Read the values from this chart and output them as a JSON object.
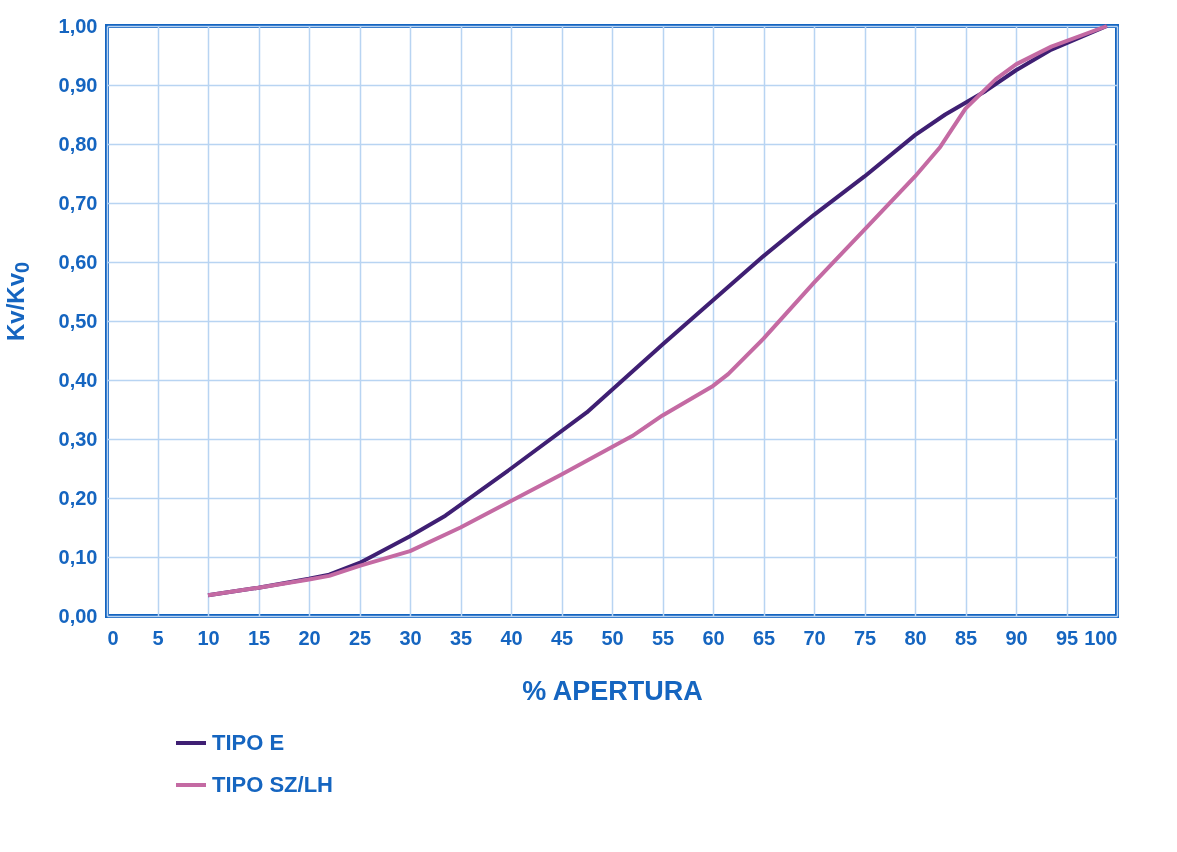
{
  "chart_data": {
    "type": "line",
    "xlabel": "%  APERTURA",
    "ylabel": "Kv/Kv$_{0}$",
    "xlim": [
      0,
      100
    ],
    "xticks": [
      0,
      5,
      10,
      15,
      20,
      25,
      30,
      35,
      40,
      45,
      50,
      55,
      60,
      65,
      70,
      75,
      80,
      85,
      90,
      95,
      100
    ],
    "ylim": [
      0,
      1
    ],
    "yticks": [
      {
        "value": 0,
        "label": "0,00"
      },
      {
        "value": 0.1,
        "label": "0,10"
      },
      {
        "value": 0.2,
        "label": "0,20"
      },
      {
        "value": 0.3,
        "label": "0,30"
      },
      {
        "value": 0.4,
        "label": "0,40"
      },
      {
        "value": 0.5,
        "label": "0,50"
      },
      {
        "value": 0.6,
        "label": "0,60"
      },
      {
        "value": 0.7,
        "label": "0,70"
      },
      {
        "value": 0.8,
        "label": "0,80"
      },
      {
        "value": 0.9,
        "label": "0,90"
      },
      {
        "value": 1,
        "label": "1,00"
      }
    ],
    "grid": true,
    "legend": "bottom left",
    "marker": "none",
    "series": [
      {
        "name": "TIPO E",
        "color": "#3f1f73",
        "x": [
          10,
          15,
          20,
          22,
          25,
          30,
          33.5,
          40,
          47.5,
          55,
          60,
          65,
          70,
          75,
          80,
          83,
          87,
          90,
          93.5,
          99
        ],
        "values": [
          0.035,
          0.048,
          0.063,
          0.07,
          0.09,
          0.135,
          0.17,
          0.25,
          0.345,
          0.46,
          0.535,
          0.61,
          0.68,
          0.745,
          0.815,
          0.85,
          0.89,
          0.925,
          0.96,
          1.0
        ]
      },
      {
        "name": "TIPO SZ/LH",
        "color": "#c46aa3",
        "x": [
          10,
          15,
          20,
          22,
          25,
          30,
          35,
          40,
          45,
          52,
          55,
          60,
          61.5,
          65,
          70,
          75,
          80,
          82.5,
          85,
          88,
          90,
          93.5,
          99
        ],
        "values": [
          0.035,
          0.048,
          0.062,
          0.068,
          0.085,
          0.11,
          0.15,
          0.195,
          0.24,
          0.305,
          0.34,
          0.39,
          0.41,
          0.47,
          0.565,
          0.655,
          0.745,
          0.795,
          0.86,
          0.91,
          0.935,
          0.965,
          1.0
        ]
      }
    ]
  }
}
